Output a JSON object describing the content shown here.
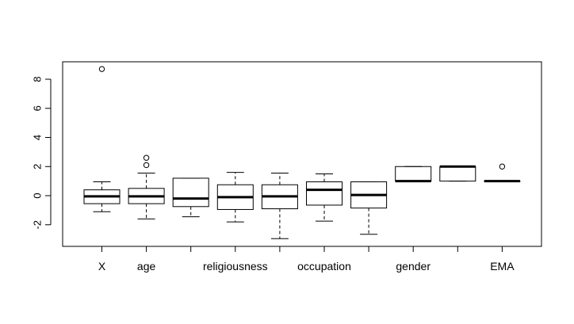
{
  "chart_data": {
    "type": "boxplot",
    "title": "",
    "xlabel": "",
    "ylabel": "",
    "ylim": [
      -3.5,
      9.5
    ],
    "y_ticks": [
      -2,
      0,
      2,
      4,
      6,
      8
    ],
    "y_tick_labels": [
      "-2",
      "0",
      "2",
      "4",
      "6",
      "8"
    ],
    "categories": [
      "X",
      "age",
      "",
      "religiousness",
      "",
      "occupation",
      "",
      "gender",
      "",
      "EMA"
    ],
    "boxes": [
      {
        "name": "X",
        "whisker_low": -1.1,
        "q1": -0.55,
        "median": -0.05,
        "q3": 0.4,
        "whisker_high": 0.95,
        "outliers": [
          8.7
        ]
      },
      {
        "name": "age",
        "whisker_low": -1.6,
        "q1": -0.55,
        "median": -0.05,
        "q3": 0.5,
        "whisker_high": 1.55,
        "outliers": [
          2.1,
          2.6
        ]
      },
      {
        "name": "",
        "whisker_low": -1.45,
        "q1": -0.75,
        "median": -0.2,
        "q3": 1.2,
        "whisker_high": 1.2,
        "outliers": []
      },
      {
        "name": "religiousness",
        "whisker_low": -1.8,
        "q1": -0.95,
        "median": -0.1,
        "q3": 0.75,
        "whisker_high": 1.6,
        "outliers": []
      },
      {
        "name": "",
        "whisker_low": -2.95,
        "q1": -0.9,
        "median": -0.05,
        "q3": 0.75,
        "whisker_high": 1.55,
        "outliers": []
      },
      {
        "name": "occupation",
        "whisker_low": -1.75,
        "q1": -0.65,
        "median": 0.4,
        "q3": 0.95,
        "whisker_high": 1.5,
        "outliers": []
      },
      {
        "name": "",
        "whisker_low": -2.65,
        "q1": -0.85,
        "median": 0.05,
        "q3": 0.95,
        "whisker_high": 0.95,
        "outliers": []
      },
      {
        "name": "gender",
        "whisker_low": 1.0,
        "q1": 1.0,
        "median": 1.0,
        "q3": 2.0,
        "whisker_high": 2.0,
        "outliers": []
      },
      {
        "name": "",
        "whisker_low": 1.0,
        "q1": 1.0,
        "median": 2.0,
        "q3": 2.0,
        "whisker_high": 2.0,
        "outliers": []
      },
      {
        "name": "EMA",
        "whisker_low": 1.0,
        "q1": 1.0,
        "median": 1.0,
        "q3": 1.0,
        "whisker_high": 1.0,
        "outliers": [
          2.0
        ]
      }
    ]
  }
}
